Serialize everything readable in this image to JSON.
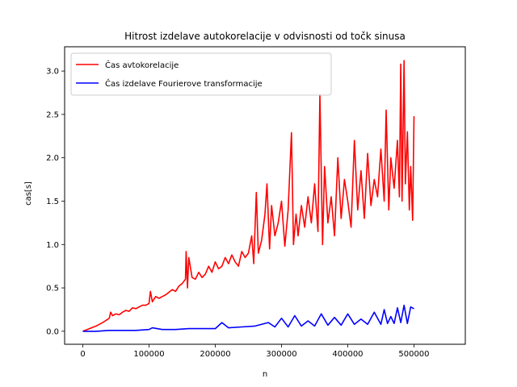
{
  "chart_data": {
    "type": "line",
    "title": "Hitrost izdelave autokorelacije v odvisnosti od točk sinusa",
    "xlabel": "n",
    "ylabel": "cas[s]",
    "xlim": [
      -27500,
      577500
    ],
    "ylim": [
      -0.15,
      3.28
    ],
    "xticks": [
      0,
      100000,
      200000,
      300000,
      400000,
      500000
    ],
    "xtick_labels": [
      "0",
      "100000",
      "200000",
      "300000",
      "400000",
      "500000"
    ],
    "yticks": [
      0.0,
      0.5,
      1.0,
      1.5,
      2.0,
      2.5,
      3.0
    ],
    "ytick_labels": [
      "0.0",
      "0.5",
      "1.0",
      "1.5",
      "2.0",
      "2.5",
      "3.0"
    ],
    "grid": false,
    "legend_position": "upper-left",
    "series": [
      {
        "name": "Čas avtokorelacije",
        "color": "#ff0000",
        "x": [
          0,
          10000,
          20000,
          30000,
          40000,
          42000,
          45000,
          50000,
          55000,
          60000,
          65000,
          70000,
          75000,
          80000,
          85000,
          90000,
          95000,
          100000,
          102000,
          105000,
          110000,
          115000,
          120000,
          125000,
          130000,
          135000,
          140000,
          145000,
          150000,
          155000,
          156000,
          158000,
          160000,
          165000,
          170000,
          175000,
          180000,
          185000,
          190000,
          195000,
          200000,
          205000,
          210000,
          215000,
          220000,
          225000,
          230000,
          235000,
          240000,
          245000,
          250000,
          255000,
          258000,
          262000,
          265000,
          270000,
          275000,
          278000,
          282000,
          285000,
          290000,
          295000,
          300000,
          305000,
          310000,
          315000,
          318000,
          322000,
          325000,
          330000,
          335000,
          340000,
          345000,
          350000,
          355000,
          358000,
          362000,
          365000,
          370000,
          375000,
          380000,
          385000,
          390000,
          395000,
          400000,
          405000,
          410000,
          415000,
          420000,
          425000,
          430000,
          435000,
          440000,
          445000,
          450000,
          455000,
          458000,
          462000,
          465000,
          470000,
          475000,
          478000,
          480000,
          482000,
          485000,
          487000,
          490000,
          493000,
          495000,
          498000,
          500000
        ],
        "values": [
          0.0,
          0.03,
          0.06,
          0.1,
          0.15,
          0.22,
          0.18,
          0.2,
          0.19,
          0.22,
          0.24,
          0.23,
          0.27,
          0.26,
          0.28,
          0.3,
          0.3,
          0.32,
          0.46,
          0.34,
          0.4,
          0.38,
          0.4,
          0.42,
          0.45,
          0.48,
          0.46,
          0.52,
          0.55,
          0.6,
          0.92,
          0.5,
          0.85,
          0.62,
          0.6,
          0.68,
          0.62,
          0.66,
          0.75,
          0.68,
          0.8,
          0.72,
          0.75,
          0.85,
          0.78,
          0.88,
          0.8,
          0.75,
          0.92,
          0.85,
          0.9,
          1.1,
          0.78,
          1.6,
          0.9,
          1.05,
          1.35,
          1.7,
          0.95,
          1.45,
          1.1,
          1.25,
          1.5,
          0.98,
          1.4,
          2.29,
          1.0,
          1.35,
          1.1,
          1.45,
          1.2,
          1.55,
          1.25,
          1.7,
          1.15,
          2.73,
          1.0,
          1.9,
          1.25,
          1.55,
          1.1,
          2.0,
          1.3,
          1.75,
          1.5,
          1.2,
          2.2,
          1.4,
          1.85,
          1.3,
          2.05,
          1.45,
          1.75,
          1.55,
          2.1,
          1.5,
          2.55,
          1.4,
          2.0,
          1.65,
          2.2,
          1.55,
          3.08,
          1.5,
          3.12,
          1.7,
          2.3,
          1.4,
          1.9,
          1.28,
          2.48
        ]
      },
      {
        "name": "Čas izdelave Fourierove transformacije",
        "color": "#0000ff",
        "x": [
          0,
          20000,
          40000,
          60000,
          80000,
          100000,
          105000,
          120000,
          140000,
          160000,
          180000,
          200000,
          210000,
          220000,
          240000,
          260000,
          280000,
          290000,
          300000,
          310000,
          320000,
          330000,
          340000,
          350000,
          360000,
          370000,
          380000,
          390000,
          400000,
          410000,
          420000,
          430000,
          440000,
          450000,
          455000,
          460000,
          465000,
          470000,
          475000,
          480000,
          485000,
          490000,
          495000,
          500000
        ],
        "values": [
          0.0,
          0.0,
          0.01,
          0.01,
          0.01,
          0.02,
          0.04,
          0.02,
          0.02,
          0.03,
          0.03,
          0.03,
          0.1,
          0.04,
          0.05,
          0.06,
          0.1,
          0.05,
          0.15,
          0.05,
          0.18,
          0.06,
          0.12,
          0.06,
          0.2,
          0.07,
          0.16,
          0.07,
          0.2,
          0.08,
          0.14,
          0.08,
          0.22,
          0.08,
          0.25,
          0.09,
          0.17,
          0.09,
          0.27,
          0.1,
          0.3,
          0.09,
          0.28,
          0.26
        ]
      }
    ]
  }
}
